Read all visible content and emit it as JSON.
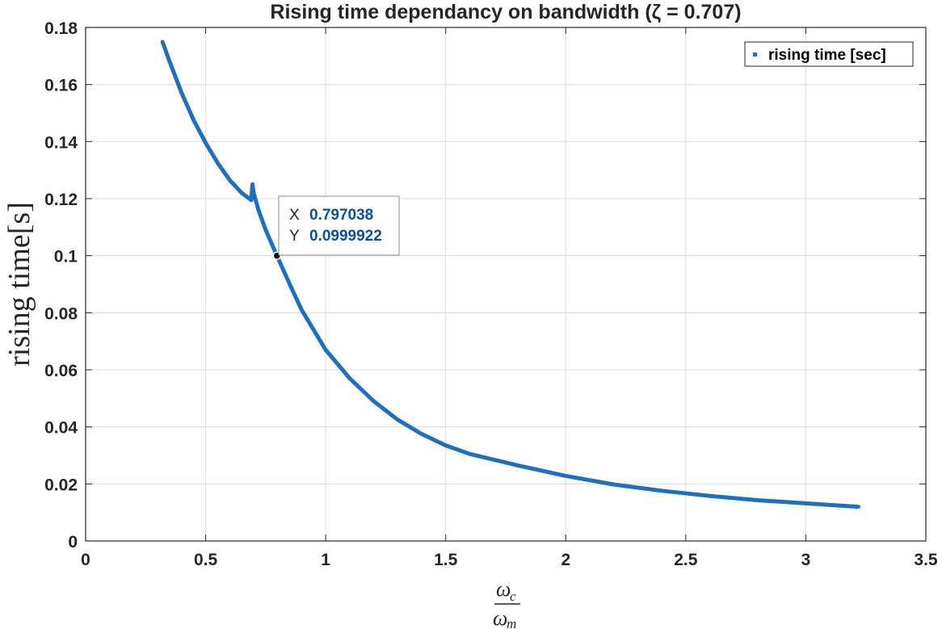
{
  "chart_data": {
    "type": "scatter",
    "title": "Rising time dependancy on bandwidth (ζ = 0.707)",
    "xlabel": {
      "numerator": "ω",
      "numerator_sub": "c",
      "denominator": "ω",
      "denominator_sub": "m"
    },
    "ylabel": "rising time[s]",
    "ylabel_unit": "s",
    "xlim": [
      0,
      3.5
    ],
    "ylim": [
      0,
      0.18
    ],
    "xticks": [
      0,
      0.5,
      1,
      1.5,
      2,
      2.5,
      3,
      3.5
    ],
    "xtick_labels": [
      "0",
      "0.5",
      "1",
      "1.5",
      "2",
      "2.5",
      "3",
      "3.5"
    ],
    "yticks": [
      0,
      0.02,
      0.04,
      0.06,
      0.08,
      0.1,
      0.12,
      0.14,
      0.16,
      0.18
    ],
    "ytick_labels": [
      "0",
      "0.02",
      "0.04",
      "0.06",
      "0.08",
      "0.1",
      "0.12",
      "0.14",
      "0.16",
      "0.18"
    ],
    "grid": true,
    "legend_position": "top-right",
    "series": [
      {
        "name": "rising time [sec]",
        "color": "#1f6fbf",
        "x": [
          0.32,
          0.35,
          0.4,
          0.45,
          0.5,
          0.55,
          0.6,
          0.65,
          0.69,
          0.695,
          0.7,
          0.72,
          0.75,
          0.797,
          0.85,
          0.9,
          1.0,
          1.1,
          1.2,
          1.3,
          1.4,
          1.5,
          1.6,
          1.8,
          2.0,
          2.2,
          2.4,
          2.6,
          2.8,
          3.0,
          3.2,
          3.22
        ],
        "y": [
          0.175,
          0.168,
          0.157,
          0.1475,
          0.1395,
          0.1325,
          0.1265,
          0.122,
          0.1195,
          0.125,
          0.122,
          0.116,
          0.109,
          0.1,
          0.09,
          0.081,
          0.067,
          0.057,
          0.049,
          0.0425,
          0.0375,
          0.0335,
          0.0305,
          0.0265,
          0.0228,
          0.0198,
          0.0176,
          0.0158,
          0.0143,
          0.0132,
          0.0121,
          0.012
        ]
      }
    ],
    "datatip": {
      "x_label": "X",
      "y_label": "Y",
      "x_value": "0.797038",
      "y_value": "0.0999922",
      "x": 0.797038,
      "y": 0.0999922
    }
  }
}
